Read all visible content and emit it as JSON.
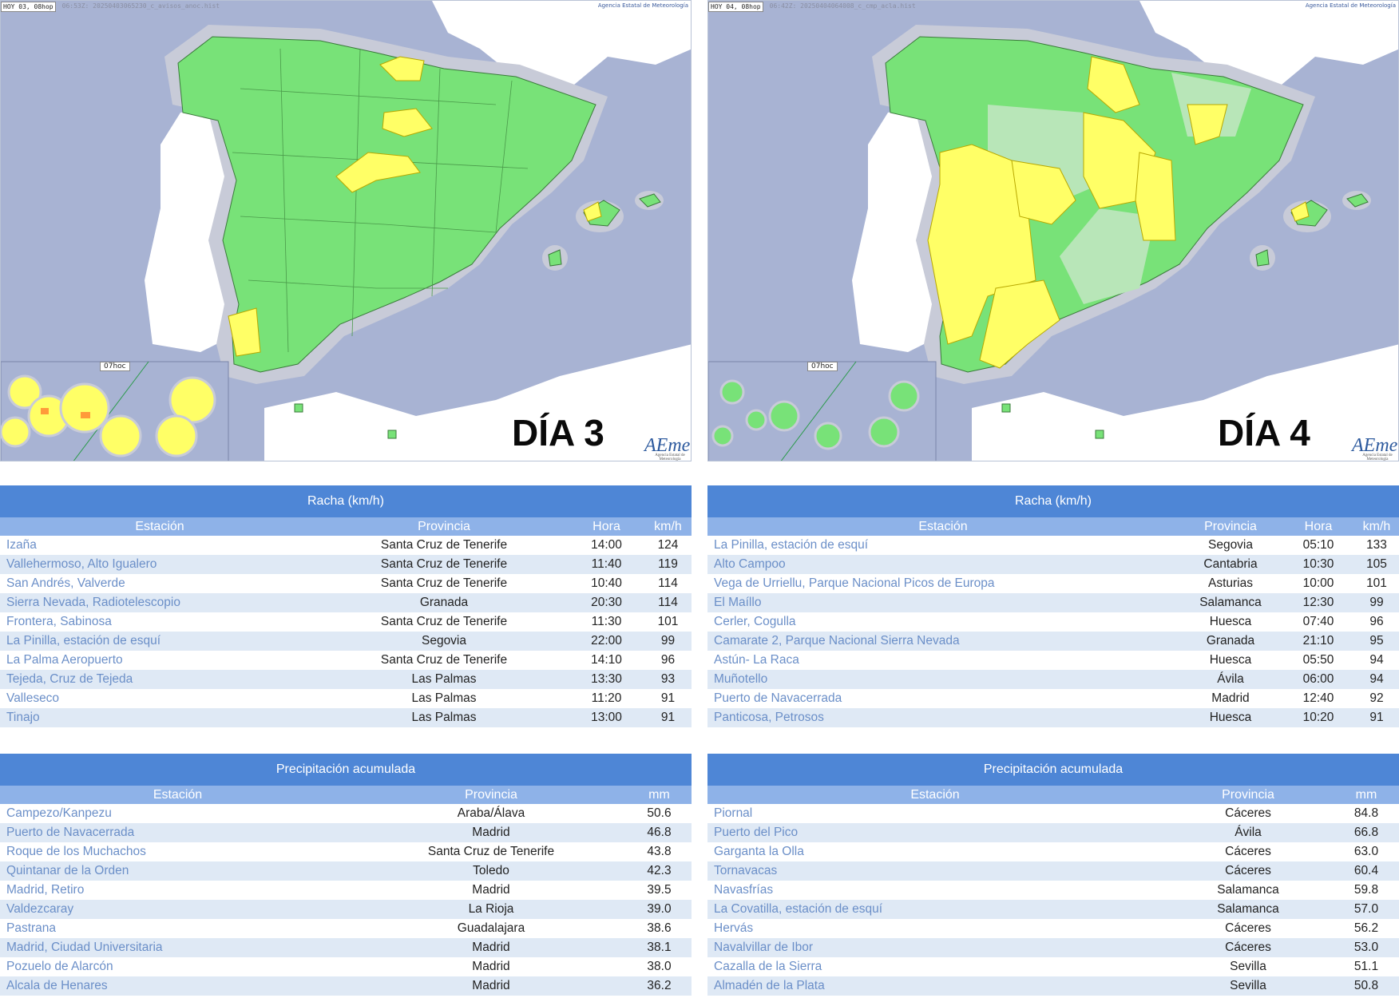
{
  "maps": [
    {
      "header_tag": "HOY 03, 08hop",
      "header_file": "06:53Z: 20250403065230_c_avisos_anoc.hist",
      "agency": "Agencia Estatal de Meteorología",
      "day_label": "DÍA 3",
      "logo": "AEmet",
      "logo_sub": "Agencia Estatal de Meteorología",
      "inset_label": "07hoc"
    },
    {
      "header_tag": "HOY 04, 08hop",
      "header_file": "06:42Z: 20250404064008_c_cmp_acla.hist",
      "agency": "Agencia Estatal de Meteorología",
      "day_label": "DÍA 4",
      "logo": "AEmet",
      "logo_sub": "Agencia Estatal de Meteorología",
      "inset_label": "07hoc"
    }
  ],
  "colors": {
    "sea": "#a8b3d3",
    "land_green": "#78e278",
    "warning_yellow": "#ffff66",
    "light_green": "#b8e6b8",
    "header_blue": "#4e86d6",
    "subheader_blue": "#8eb2e8",
    "row_alt": "#dfe9f5",
    "station_link": "#6b8fc8"
  },
  "gust_tables": [
    {
      "title": "Racha (km/h)",
      "columns": [
        "Estación",
        "Provincia",
        "Hora",
        "km/h"
      ],
      "rows": [
        [
          "Izaña",
          "Santa Cruz de Tenerife",
          "14:00",
          "124"
        ],
        [
          "Vallehermoso, Alto Igualero",
          "Santa Cruz de Tenerife",
          "11:40",
          "119"
        ],
        [
          "San Andrés, Valverde",
          "Santa Cruz de Tenerife",
          "10:40",
          "114"
        ],
        [
          "Sierra Nevada, Radiotelescopio",
          "Granada",
          "20:30",
          "114"
        ],
        [
          "Frontera, Sabinosa",
          "Santa Cruz de Tenerife",
          "11:30",
          "101"
        ],
        [
          "La Pinilla, estación de esquí",
          "Segovia",
          "22:00",
          "99"
        ],
        [
          "La Palma Aeropuerto",
          "Santa Cruz de Tenerife",
          "14:10",
          "96"
        ],
        [
          "Tejeda, Cruz de Tejeda",
          "Las Palmas",
          "13:30",
          "93"
        ],
        [
          "Valleseco",
          "Las Palmas",
          "11:20",
          "91"
        ],
        [
          "Tinajo",
          "Las Palmas",
          "13:00",
          "91"
        ]
      ]
    },
    {
      "title": "Racha (km/h)",
      "columns": [
        "Estación",
        "Provincia",
        "Hora",
        "km/h"
      ],
      "rows": [
        [
          "La Pinilla, estación de esquí",
          "Segovia",
          "05:10",
          "133"
        ],
        [
          "Alto Campoo",
          "Cantabria",
          "10:30",
          "105"
        ],
        [
          "Vega de Urriellu, Parque Nacional Picos de Europa",
          "Asturias",
          "10:00",
          "101"
        ],
        [
          "El Maíllo",
          "Salamanca",
          "12:30",
          "99"
        ],
        [
          "Cerler, Cogulla",
          "Huesca",
          "07:40",
          "96"
        ],
        [
          "Camarate 2, Parque Nacional Sierra Nevada",
          "Granada",
          "21:10",
          "95"
        ],
        [
          "Astún- La Raca",
          "Huesca",
          "05:50",
          "94"
        ],
        [
          "Muñotello",
          "Ávila",
          "06:00",
          "94"
        ],
        [
          "Puerto de Navacerrada",
          "Madrid",
          "12:40",
          "92"
        ],
        [
          "Panticosa, Petrosos",
          "Huesca",
          "10:20",
          "91"
        ]
      ]
    }
  ],
  "precip_tables": [
    {
      "title": "Precipitación acumulada",
      "columns": [
        "Estación",
        "Provincia",
        "mm"
      ],
      "rows": [
        [
          "Campezo/Kanpezu",
          "Araba/Álava",
          "50.6"
        ],
        [
          "Puerto de Navacerrada",
          "Madrid",
          "46.8"
        ],
        [
          "Roque de los Muchachos",
          "Santa Cruz de Tenerife",
          "43.8"
        ],
        [
          "Quintanar de la Orden",
          "Toledo",
          "42.3"
        ],
        [
          "Madrid, Retiro",
          "Madrid",
          "39.5"
        ],
        [
          "Valdezcaray",
          "La Rioja",
          "39.0"
        ],
        [
          "Pastrana",
          "Guadalajara",
          "38.6"
        ],
        [
          "Madrid, Ciudad Universitaria",
          "Madrid",
          "38.1"
        ],
        [
          "Pozuelo de Alarcón",
          "Madrid",
          "38.0"
        ],
        [
          "Alcala de Henares",
          "Madrid",
          "36.2"
        ]
      ]
    },
    {
      "title": "Precipitación acumulada",
      "columns": [
        "Estación",
        "Provincia",
        "mm"
      ],
      "rows": [
        [
          "Piornal",
          "Cáceres",
          "84.8"
        ],
        [
          "Puerto del Pico",
          "Ávila",
          "66.8"
        ],
        [
          "Garganta la Olla",
          "Cáceres",
          "63.0"
        ],
        [
          "Tornavacas",
          "Cáceres",
          "60.4"
        ],
        [
          "Navasfrías",
          "Salamanca",
          "59.8"
        ],
        [
          "La Covatilla, estación de esquí",
          "Salamanca",
          "57.0"
        ],
        [
          "Hervás",
          "Cáceres",
          "56.2"
        ],
        [
          "Navalvillar de Ibor",
          "Cáceres",
          "53.0"
        ],
        [
          "Cazalla de la Sierra",
          "Sevilla",
          "51.1"
        ],
        [
          "Almadén de la Plata",
          "Sevilla",
          "50.8"
        ]
      ]
    }
  ]
}
